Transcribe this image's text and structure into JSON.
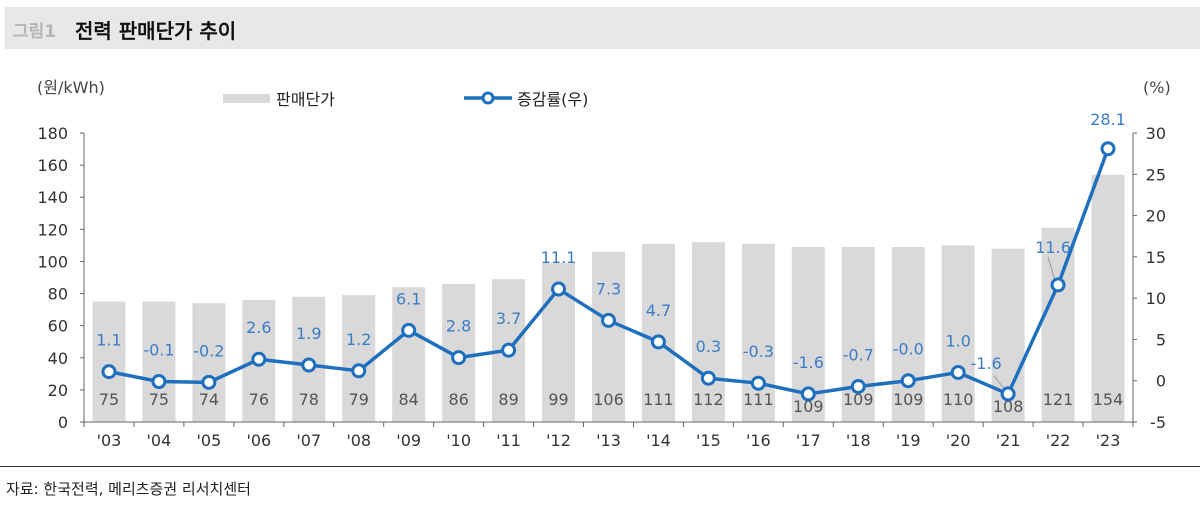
{
  "header": {
    "figure_number": "그림1",
    "title": "전력 판매단가 추이"
  },
  "footer": {
    "source": "자료: 한국전력, 메리츠증권 리서치센터"
  },
  "chart_data": {
    "type": "bar+line",
    "title": "전력 판매단가 추이",
    "categories": [
      "'03",
      "'04",
      "'05",
      "'06",
      "'07",
      "'08",
      "'09",
      "'10",
      "'11",
      "'12",
      "'13",
      "'14",
      "'15",
      "'16",
      "'17",
      "'18",
      "'19",
      "'20",
      "'21",
      "'22",
      "'23"
    ],
    "series": [
      {
        "name": "판매단가",
        "type": "bar",
        "axis": "left",
        "color": "#d9d9d9",
        "values": [
          75,
          75,
          74,
          76,
          78,
          79,
          84,
          86,
          89,
          99,
          106,
          111,
          112,
          111,
          109,
          109,
          109,
          110,
          108,
          121,
          154
        ]
      },
      {
        "name": "증감률(우)",
        "type": "line",
        "axis": "right",
        "color": "#1f6fbf",
        "values": [
          1.1,
          -0.1,
          -0.2,
          2.6,
          1.9,
          1.2,
          6.1,
          2.8,
          3.7,
          11.1,
          7.3,
          4.7,
          0.3,
          -0.3,
          -1.6,
          -0.7,
          -0.0,
          1.0,
          -1.6,
          11.6,
          28.1
        ],
        "labels": [
          "1.1",
          "-0.1",
          "-0.2",
          "2.6",
          "1.9",
          "1.2",
          "6.1",
          "2.8",
          "3.7",
          "11.1",
          "7.3",
          "4.7",
          "0.3",
          "-0.3",
          "-1.6",
          "-0.7",
          "-0.0",
          "1.0",
          "-1.6",
          "11.6",
          "28.1"
        ]
      }
    ],
    "left_axis": {
      "label": "(원/kWh)",
      "ylim": [
        0,
        180
      ],
      "ticks": [
        0,
        20,
        40,
        60,
        80,
        100,
        120,
        140,
        160,
        180
      ]
    },
    "right_axis": {
      "label": "(%)",
      "ylim": [
        -5,
        30
      ],
      "ticks": [
        -5,
        0,
        5,
        10,
        15,
        20,
        25,
        30
      ]
    },
    "legend": {
      "position": "top",
      "entries": [
        "판매단가",
        "증감률(우)"
      ]
    },
    "grid": false
  }
}
